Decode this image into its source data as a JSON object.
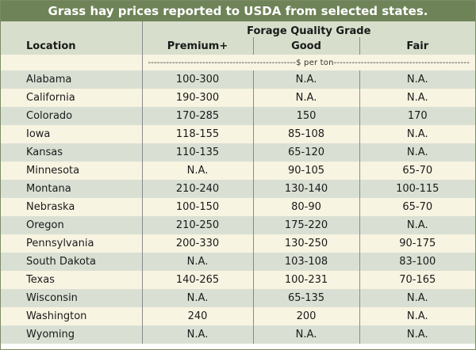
{
  "title": "Grass hay prices reported to USDA from selected states.",
  "header": {
    "group_label": "Forage Quality Grade",
    "location_label": "Location",
    "grades": [
      "Premium+",
      "Good",
      "Fair"
    ],
    "units": "-------------------------------------------------$ per ton---------------------------------------------"
  },
  "rows": [
    {
      "location": "Alabama",
      "premium": "100-300",
      "good": "N.A.",
      "fair": "N.A."
    },
    {
      "location": "California",
      "premium": "190-300",
      "good": "N.A.",
      "fair": "N.A."
    },
    {
      "location": "Colorado",
      "premium": "170-285",
      "good": "150",
      "fair": "170"
    },
    {
      "location": "Iowa",
      "premium": "118-155",
      "good": "85-108",
      "fair": "N.A."
    },
    {
      "location": "Kansas",
      "premium": "110-135",
      "good": "65-120",
      "fair": "N.A."
    },
    {
      "location": "Minnesota",
      "premium": "N.A.",
      "good": "90-105",
      "fair": "65-70"
    },
    {
      "location": "Montana",
      "premium": "210-240",
      "good": "130-140",
      "fair": "100-115"
    },
    {
      "location": "Nebraska",
      "premium": "100-150",
      "good": "80-90",
      "fair": "65-70"
    },
    {
      "location": "Oregon",
      "premium": "210-250",
      "good": "175-220",
      "fair": "N.A."
    },
    {
      "location": "Pennsylvania",
      "premium": "200-330",
      "good": "130-250",
      "fair": "90-175"
    },
    {
      "location": "South Dakota",
      "premium": "N.A.",
      "good": "103-108",
      "fair": "83-100"
    },
    {
      "location": "Texas",
      "premium": "140-265",
      "good": "100-231",
      "fair": "70-165"
    },
    {
      "location": "Wisconsin",
      "premium": "N.A.",
      "good": "65-135",
      "fair": "N.A."
    },
    {
      "location": "Washington",
      "premium": "240",
      "good": "200",
      "fair": "N.A."
    },
    {
      "location": "Wyoming",
      "premium": "N.A.",
      "good": "N.A.",
      "fair": "N.A."
    }
  ]
}
